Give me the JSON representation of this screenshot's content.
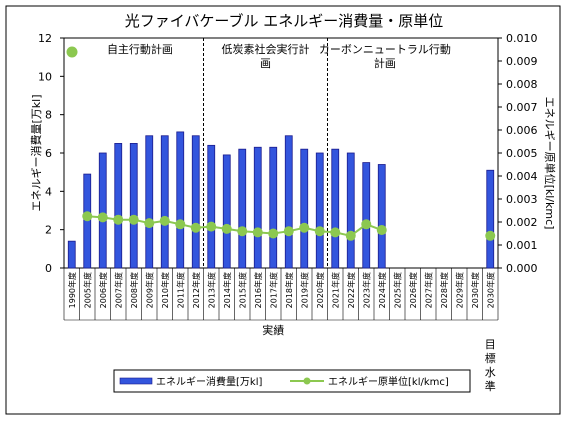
{
  "chart_data": {
    "type": "bar",
    "title": "光ファイバケーブル エネルギー消費量・原単位",
    "categories": [
      "1990年度",
      "2005年度",
      "2006年度",
      "2007年度",
      "2008年度",
      "2009年度",
      "2010年度",
      "2011年度",
      "2012年度",
      "2013年度",
      "2014年度",
      "2015年度",
      "2016年度",
      "2017年度",
      "2018年度",
      "2019年度",
      "2020年度",
      "2021年度",
      "2022年度",
      "2023年度",
      "2024年度",
      "2025年度",
      "2026年度",
      "2027年度",
      "2028年度",
      "2029年度",
      "2030年度",
      "2030年度"
    ],
    "series": [
      {
        "name": "エネルギー消費量[万kl]",
        "axis": "left",
        "kind": "bar",
        "color": "#3355DD",
        "values": [
          1.4,
          4.9,
          6.0,
          6.5,
          6.5,
          6.9,
          6.9,
          7.1,
          6.9,
          6.4,
          5.9,
          6.2,
          6.3,
          6.3,
          6.9,
          6.2,
          6.0,
          6.2,
          6.0,
          5.5,
          5.4,
          null,
          null,
          null,
          null,
          null,
          null,
          5.1
        ]
      },
      {
        "name": "エネルギー原単位[kl/kmc]",
        "axis": "right",
        "kind": "line",
        "color": "#8CC850",
        "values": [
          null,
          0.00225,
          0.0022,
          0.0021,
          0.0021,
          0.00195,
          0.00205,
          0.0019,
          0.00175,
          0.0018,
          0.0017,
          0.0016,
          0.00155,
          0.0015,
          0.0016,
          0.00175,
          0.0016,
          0.00155,
          0.0014,
          0.0019,
          0.00165,
          null,
          null,
          null,
          null,
          null,
          null,
          0.0014
        ]
      }
    ],
    "ylabel": "エネルギー消費量[万kl]",
    "y2label": "エネルギー原単位[kl/kmc]",
    "ylim": [
      0,
      12
    ],
    "y2lim": [
      0,
      0.01
    ],
    "yticks": [
      "0",
      "2",
      "4",
      "6",
      "8",
      "10",
      "12"
    ],
    "y2ticks": [
      "0.000",
      "0.001",
      "0.002",
      "0.003",
      "0.004",
      "0.005",
      "0.006",
      "0.007",
      "0.008",
      "0.009",
      "0.010"
    ],
    "xlabel": "実績",
    "target_label_chars": [
      "目",
      "標",
      "水",
      "準"
    ],
    "phases": [
      {
        "label_lines": [
          "自主行動計画"
        ],
        "marker_legend": true
      },
      {
        "label_lines": [
          "低炭素社会実行計",
          "画"
        ]
      },
      {
        "label_lines": [
          "カーボンニュートラル行動",
          "計画"
        ]
      }
    ],
    "grid": false,
    "legend_placement": "bottom"
  }
}
